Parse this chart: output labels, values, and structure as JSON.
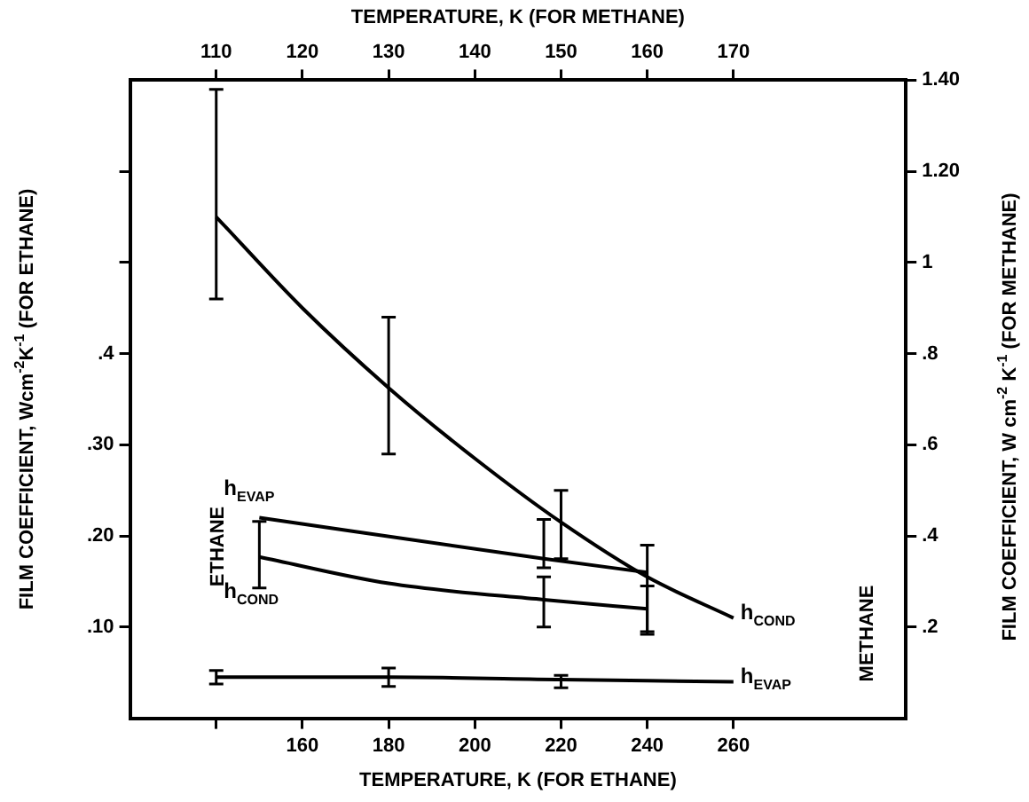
{
  "chart_data": {
    "type": "line",
    "x2label": "TEMPERATURE, K (FOR ETHANE)",
    "xlabel": "TEMPERATURE, K (FOR METHANE)",
    "ylabel": "FILM COEFFICIENT, Wcm$^{-2}$K$^{-1}$ (FOR ETHANE)",
    "y2label": "FILM COEFFICIENT, W cm$^{-2}$ K$^{-1}$ (FOR METHANE)",
    "x2lim": [
      120,
      300
    ],
    "x2ticks": [
      {
        "value": 140,
        "label": null
      },
      160,
      180,
      200,
      220,
      240,
      260
    ],
    "xlim": [
      100,
      190
    ],
    "xticks": [
      110,
      120,
      130,
      140,
      150,
      160,
      170
    ],
    "ylim": [
      0,
      0.7
    ],
    "yticks": [
      {
        "value": 0.1,
        "label": ".10"
      },
      {
        "value": 0.2,
        "label": ".20"
      },
      {
        "value": 0.3,
        "label": ".30"
      },
      {
        "value": 0.4,
        "label": ".4"
      },
      {
        "value": 0.5,
        "label": null
      },
      {
        "value": 0.6,
        "label": null
      }
    ],
    "y2lim": [
      0,
      1.4
    ],
    "y2ticks": [
      {
        "value": 0.2,
        "label": ".2"
      },
      {
        "value": 0.4,
        "label": ".4"
      },
      {
        "value": 0.6,
        "label": ".6"
      },
      {
        "value": 0.8,
        "label": ".8"
      },
      1,
      {
        "value": 1.2,
        "label": "1.20"
      },
      {
        "value": 1.4,
        "label": "1.40"
      }
    ],
    "grid": false,
    "legend": false,
    "line_style": "solid",
    "annotations": [
      "ETHANE",
      "METHANE"
    ],
    "series": [
      {
        "name": "h$_{EVAP}$",
        "color": "#000000",
        "axis": "x2",
        "x": [
          150,
          216,
          240
        ],
        "values": [
          0.22,
          0.175,
          0.16
        ],
        "errors": [
          null,
          [
            0.165,
            0.218
          ],
          null
        ]
      },
      {
        "name": "h$_{COND}$",
        "color": "#000000",
        "axis": "x2",
        "x": [
          150,
          180,
          216,
          240
        ],
        "values": [
          0.177,
          0.148,
          0.13,
          0.12
        ],
        "errors": [
          [
            0.143,
            0.216
          ],
          null,
          [
            0.1,
            0.155
          ],
          [
            0.092,
            0.145
          ]
        ]
      },
      {
        "name": "h$_{COND}$",
        "color": "#000000",
        "axis": "y2",
        "x": [
          110,
          120,
          130,
          140,
          150,
          160,
          170
        ],
        "values": [
          1.1,
          0.9,
          0.725,
          0.57,
          0.43,
          0.31,
          0.22
        ],
        "errors": [
          [
            0.92,
            1.38
          ],
          null,
          [
            0.58,
            0.88
          ],
          null,
          [
            0.35,
            0.5
          ],
          [
            0.19,
            0.38
          ],
          null
        ]
      },
      {
        "name": "h$_{EVAP}$",
        "color": "#000000",
        "axis": "y2",
        "x": [
          110,
          130,
          150,
          170
        ],
        "values": [
          0.09,
          0.09,
          0.085,
          0.08
        ],
        "errors": [
          [
            0.075,
            0.105
          ],
          [
            0.07,
            0.11
          ],
          [
            0.067,
            0.094
          ],
          null
        ]
      }
    ]
  }
}
